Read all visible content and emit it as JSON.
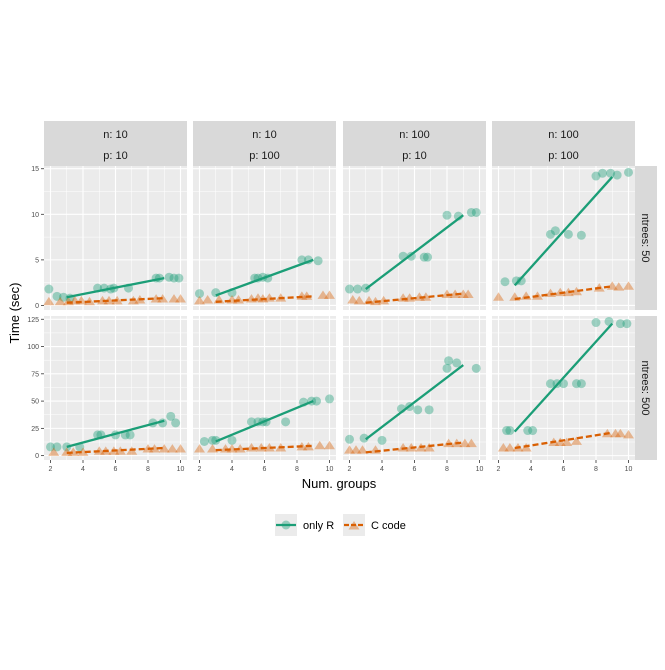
{
  "ylabel": "Time (sec)",
  "xlabel": "Num. groups",
  "legend": {
    "items": [
      {
        "label": "only R",
        "color": "#1b9e77",
        "shape": "circle",
        "line": "solid"
      },
      {
        "label": "C code",
        "color": "#d95f02",
        "shape": "triangle",
        "line": "dashed"
      }
    ]
  },
  "col_strips": [
    {
      "line1": "n: 10",
      "line2": "p: 10"
    },
    {
      "line1": "n: 10",
      "line2": "p: 100"
    },
    {
      "line1": "n: 100",
      "line2": "p: 10"
    },
    {
      "line1": "n: 100",
      "line2": "p: 100"
    }
  ],
  "row_strips": [
    "ntrees: 50",
    "ntrees: 500"
  ],
  "chart_data": {
    "type": "scatter",
    "facets": {
      "cols": [
        "n: 10 / p: 10",
        "n: 10 / p: 100",
        "n: 100 / p: 10",
        "n: 100 / p: 100"
      ],
      "rows": [
        "ntrees: 50",
        "ntrees: 500"
      ]
    },
    "x_ticks": [
      2,
      4,
      6,
      8,
      10
    ],
    "xlim": [
      1.6,
      10.4
    ],
    "rows": [
      {
        "ylim": [
          -0.5,
          15.3
        ],
        "y_ticks": [
          0,
          5,
          10,
          15
        ]
      },
      {
        "ylim": [
          -4,
          128
        ],
        "y_ticks": [
          0,
          25,
          50,
          75,
          100,
          125
        ]
      }
    ],
    "series_names": [
      "only R",
      "C code"
    ],
    "panels": [
      {
        "row": 0,
        "col": 0,
        "only_R": [
          [
            1.9,
            1.8
          ],
          [
            2.4,
            1
          ],
          [
            2.8,
            0.9
          ],
          [
            3.2,
            0.8
          ],
          [
            4.9,
            1.9
          ],
          [
            5.3,
            1.9
          ],
          [
            5.7,
            1.8
          ],
          [
            5.9,
            1.9
          ],
          [
            6.8,
            1.9
          ],
          [
            8.5,
            3
          ],
          [
            8.7,
            3
          ],
          [
            9.3,
            3.1
          ],
          [
            9.6,
            3
          ],
          [
            9.9,
            3
          ]
        ],
        "C_code": [
          [
            1.9,
            0.4
          ],
          [
            2.6,
            0.4
          ],
          [
            3.1,
            0.4
          ],
          [
            3.5,
            0.5
          ],
          [
            3.9,
            0.5
          ],
          [
            4.4,
            0.4
          ],
          [
            5.2,
            0.5
          ],
          [
            5.6,
            0.5
          ],
          [
            6.1,
            0.5
          ],
          [
            7.1,
            0.5
          ],
          [
            7.5,
            0.6
          ],
          [
            8.5,
            0.7
          ],
          [
            8.9,
            0.7
          ],
          [
            9.6,
            0.7
          ],
          [
            10,
            0.7
          ]
        ],
        "fit_R": [
          [
            3,
            0.9
          ],
          [
            9,
            3
          ]
        ],
        "fit_C": [
          [
            3,
            0.3
          ],
          [
            9,
            0.8
          ]
        ]
      },
      {
        "row": 0,
        "col": 1,
        "only_R": [
          [
            2,
            1.3
          ],
          [
            3,
            1.4
          ],
          [
            4,
            1.4
          ],
          [
            5.4,
            3
          ],
          [
            5.6,
            3
          ],
          [
            5.9,
            3.1
          ],
          [
            6.2,
            3
          ],
          [
            8.3,
            5
          ],
          [
            8.7,
            5
          ],
          [
            9.3,
            4.9
          ]
        ],
        "C_code": [
          [
            2,
            0.5
          ],
          [
            2.5,
            0.6
          ],
          [
            3.2,
            0.6
          ],
          [
            4,
            0.6
          ],
          [
            4.4,
            0.6
          ],
          [
            5.2,
            0.7
          ],
          [
            5.6,
            0.8
          ],
          [
            5.9,
            0.7
          ],
          [
            6.3,
            0.8
          ],
          [
            7,
            0.8
          ],
          [
            8.3,
            1
          ],
          [
            8.6,
            1
          ],
          [
            9.6,
            1.1
          ],
          [
            10,
            1.1
          ]
        ],
        "fit_R": [
          [
            3,
            1.1
          ],
          [
            9,
            5
          ]
        ],
        "fit_C": [
          [
            3,
            0.4
          ],
          [
            9,
            1
          ]
        ]
      },
      {
        "row": 0,
        "col": 2,
        "only_R": [
          [
            2,
            1.8
          ],
          [
            2.5,
            1.8
          ],
          [
            3,
            1.9
          ],
          [
            5.3,
            5.4
          ],
          [
            5.8,
            5.4
          ],
          [
            6.6,
            5.3
          ],
          [
            6.8,
            5.3
          ],
          [
            8,
            9.9
          ],
          [
            8.7,
            9.8
          ],
          [
            9.5,
            10.2
          ],
          [
            9.8,
            10.2
          ]
        ],
        "C_code": [
          [
            2.2,
            0.6
          ],
          [
            2.6,
            0.5
          ],
          [
            3.2,
            0.5
          ],
          [
            3.6,
            0.4
          ],
          [
            4.1,
            0.5
          ],
          [
            5.3,
            0.8
          ],
          [
            5.7,
            0.8
          ],
          [
            6.3,
            0.9
          ],
          [
            6.7,
            0.9
          ],
          [
            8,
            1.2
          ],
          [
            8.5,
            1.2
          ],
          [
            9,
            1.2
          ],
          [
            9.3,
            1.2
          ]
        ],
        "fit_R": [
          [
            3,
            1.8
          ],
          [
            9,
            9.9
          ]
        ],
        "fit_C": [
          [
            3,
            0.3
          ],
          [
            9,
            1.3
          ]
        ]
      },
      {
        "row": 0,
        "col": 3,
        "only_R": [
          [
            2.4,
            2.6
          ],
          [
            3.1,
            2.7
          ],
          [
            3.4,
            2.7
          ],
          [
            5.2,
            7.8
          ],
          [
            5.5,
            8.2
          ],
          [
            6.3,
            7.8
          ],
          [
            7.1,
            7.7
          ],
          [
            8,
            14.2
          ],
          [
            8.4,
            14.5
          ],
          [
            8.9,
            14.5
          ],
          [
            9.3,
            14.3
          ],
          [
            10,
            14.6
          ]
        ],
        "C_code": [
          [
            2,
            0.9
          ],
          [
            3,
            0.9
          ],
          [
            3.7,
            1
          ],
          [
            4.4,
            1
          ],
          [
            5.2,
            1.3
          ],
          [
            5.8,
            1.4
          ],
          [
            6.3,
            1.4
          ],
          [
            6.8,
            1.5
          ],
          [
            8.2,
            1.9
          ],
          [
            9,
            2.1
          ],
          [
            9.4,
            2
          ],
          [
            10,
            2.1
          ]
        ],
        "fit_R": [
          [
            3,
            2.2
          ],
          [
            9,
            14.1
          ]
        ],
        "fit_C": [
          [
            3,
            0.7
          ],
          [
            9,
            2.1
          ]
        ]
      },
      {
        "row": 1,
        "col": 0,
        "only_R": [
          [
            2,
            8
          ],
          [
            2.4,
            8
          ],
          [
            3,
            8
          ],
          [
            3.8,
            8
          ],
          [
            4.9,
            19
          ],
          [
            5.1,
            19
          ],
          [
            6,
            19
          ],
          [
            6.6,
            19
          ],
          [
            6.9,
            19
          ],
          [
            8.3,
            30
          ],
          [
            8.9,
            30
          ],
          [
            9.4,
            36
          ],
          [
            9.7,
            30
          ]
        ],
        "C_code": [
          [
            2.2,
            3
          ],
          [
            3,
            3
          ],
          [
            3.4,
            3
          ],
          [
            4,
            3
          ],
          [
            5,
            4
          ],
          [
            5.4,
            4
          ],
          [
            5.9,
            4
          ],
          [
            6.3,
            4
          ],
          [
            7,
            4
          ],
          [
            8,
            6
          ],
          [
            8.4,
            6
          ],
          [
            9,
            6
          ],
          [
            9.5,
            6
          ],
          [
            10,
            6
          ]
        ],
        "fit_R": [
          [
            3,
            8
          ],
          [
            9,
            32
          ]
        ],
        "fit_C": [
          [
            3,
            2.5
          ],
          [
            9,
            7
          ]
        ]
      },
      {
        "row": 1,
        "col": 1,
        "only_R": [
          [
            2.3,
            13
          ],
          [
            2.8,
            14
          ],
          [
            3,
            14
          ],
          [
            4,
            14
          ],
          [
            5.2,
            31
          ],
          [
            5.6,
            31
          ],
          [
            5.9,
            31
          ],
          [
            6.1,
            31
          ],
          [
            7.3,
            31
          ],
          [
            8.4,
            49
          ],
          [
            8.9,
            50
          ],
          [
            9.2,
            50
          ],
          [
            10,
            52
          ]
        ],
        "C_code": [
          [
            2,
            6
          ],
          [
            2.8,
            6
          ],
          [
            3.6,
            6
          ],
          [
            4,
            6
          ],
          [
            4.5,
            6
          ],
          [
            5.2,
            7
          ],
          [
            5.8,
            7
          ],
          [
            6.3,
            7
          ],
          [
            7,
            7
          ],
          [
            8.3,
            8
          ],
          [
            8.7,
            8
          ],
          [
            9.4,
            9
          ],
          [
            10,
            9
          ]
        ],
        "fit_R": [
          [
            3,
            13
          ],
          [
            9,
            50
          ]
        ],
        "fit_C": [
          [
            3,
            5
          ],
          [
            9,
            9
          ]
        ]
      },
      {
        "row": 1,
        "col": 2,
        "only_R": [
          [
            2,
            15
          ],
          [
            2.9,
            16
          ],
          [
            4,
            14
          ],
          [
            5.2,
            43
          ],
          [
            5.7,
            45
          ],
          [
            6.2,
            42
          ],
          [
            6.9,
            42
          ],
          [
            8,
            80
          ],
          [
            8.1,
            87
          ],
          [
            8.6,
            85
          ],
          [
            9.8,
            80
          ]
        ],
        "C_code": [
          [
            2,
            5
          ],
          [
            2.4,
            5
          ],
          [
            2.8,
            5
          ],
          [
            3.6,
            5
          ],
          [
            5.3,
            7
          ],
          [
            5.8,
            7
          ],
          [
            6.4,
            7
          ],
          [
            6.9,
            7
          ],
          [
            8.1,
            11
          ],
          [
            8.6,
            11
          ],
          [
            9.1,
            11
          ],
          [
            9.5,
            11
          ]
        ],
        "fit_R": [
          [
            3,
            15
          ],
          [
            9,
            83
          ]
        ],
        "fit_C": [
          [
            3,
            3
          ],
          [
            9,
            12
          ]
        ]
      },
      {
        "row": 1,
        "col": 3,
        "only_R": [
          [
            2.5,
            23
          ],
          [
            2.7,
            23
          ],
          [
            3.8,
            23
          ],
          [
            4.1,
            23
          ],
          [
            5.2,
            66
          ],
          [
            5.6,
            66
          ],
          [
            6,
            66
          ],
          [
            6.8,
            66
          ],
          [
            7.1,
            66
          ],
          [
            8,
            122
          ],
          [
            8.8,
            123
          ],
          [
            9.5,
            121
          ],
          [
            9.9,
            121
          ]
        ],
        "C_code": [
          [
            2.3,
            7
          ],
          [
            2.7,
            7
          ],
          [
            3.2,
            7
          ],
          [
            3.7,
            7
          ],
          [
            5.4,
            12
          ],
          [
            5.8,
            12
          ],
          [
            6.2,
            12
          ],
          [
            6.8,
            13
          ],
          [
            8.7,
            20
          ],
          [
            9.2,
            20
          ],
          [
            9.5,
            20
          ],
          [
            10,
            19
          ]
        ],
        "fit_R": [
          [
            3,
            22
          ],
          [
            9,
            121
          ]
        ],
        "fit_C": [
          [
            3,
            7
          ],
          [
            9,
            21
          ]
        ]
      }
    ]
  }
}
